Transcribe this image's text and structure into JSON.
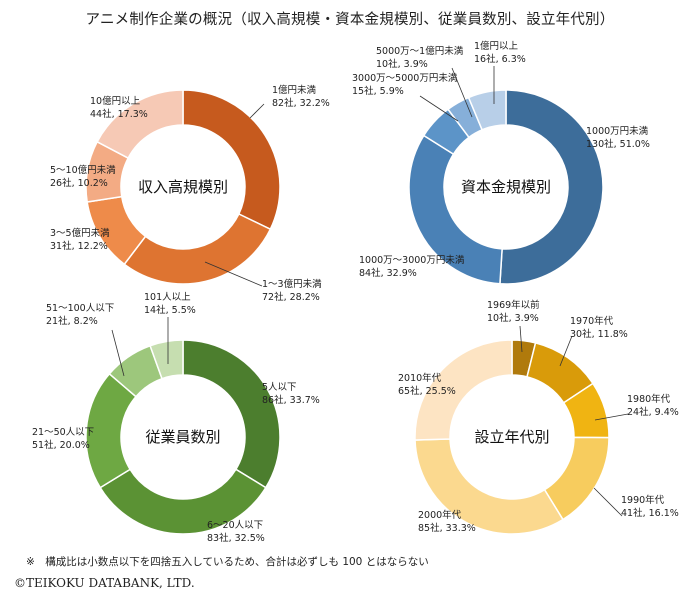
{
  "title": "アニメ制作企業の概況（収入高規模・資本金規模別、従業員数別、設立年代別）",
  "note": "※　構成比は小数点以下を四捨五入しているため、合計は必ずしも 100 とはならない",
  "copyright": "©TEIKOKU DATABANK, LTD.",
  "chart_data": [
    {
      "type": "pie",
      "donut": true,
      "title": "収入高規模別",
      "colors": [
        "#c65a1e",
        "#de7431",
        "#ee8b4a",
        "#f3ab84",
        "#f6c9b5"
      ],
      "slices": [
        {
          "name": "1億円未満",
          "count": "82社",
          "pct": "32.2%",
          "value": 32.2
        },
        {
          "name": "1～3億円未満",
          "count": "72社",
          "pct": "28.2%",
          "value": 28.2
        },
        {
          "name": "3～5億円未満",
          "count": "31社",
          "pct": "12.2%",
          "value": 12.2
        },
        {
          "name": "5～10億円未満",
          "count": "26社",
          "pct": "10.2%",
          "value": 10.2
        },
        {
          "name": "10億円以上",
          "count": "44社",
          "pct": "17.3%",
          "value": 17.3
        }
      ]
    },
    {
      "type": "pie",
      "donut": true,
      "title": "資本金規模別",
      "colors": [
        "#3d6d9a",
        "#4a81b6",
        "#5c94c8",
        "#86afd9",
        "#b8cfe8"
      ],
      "slices": [
        {
          "name": "1000万円未満",
          "count": "130社",
          "pct": "51.0%",
          "value": 51.0
        },
        {
          "name": "1000万～3000万円未満",
          "count": "84社",
          "pct": "32.9%",
          "value": 32.9
        },
        {
          "name": "3000万～5000万円未満",
          "count": "15社",
          "pct": "5.9%",
          "value": 5.9
        },
        {
          "name": "5000万～1億円未満",
          "count": "10社",
          "pct": "3.9%",
          "value": 3.9
        },
        {
          "name": "1億円以上",
          "count": "16社",
          "pct": "6.3%",
          "value": 6.3
        }
      ]
    },
    {
      "type": "pie",
      "donut": true,
      "title": "従業員数別",
      "colors": [
        "#4c7e2e",
        "#5b9234",
        "#6ea843",
        "#9dc77c",
        "#c6deb0"
      ],
      "slices": [
        {
          "name": "5人以下",
          "count": "86社",
          "pct": "33.7%",
          "value": 33.7
        },
        {
          "name": "6～20人以下",
          "count": "83社",
          "pct": "32.5%",
          "value": 32.5
        },
        {
          "name": "21～50人以下",
          "count": "51社",
          "pct": "20.0%",
          "value": 20.0
        },
        {
          "name": "51～100人以下",
          "count": "21社",
          "pct": "8.2%",
          "value": 8.2
        },
        {
          "name": "101人以上",
          "count": "14社",
          "pct": "5.5%",
          "value": 5.5
        }
      ]
    },
    {
      "type": "pie",
      "donut": true,
      "title": "設立年代別",
      "colors": [
        "#b07a0c",
        "#d99b0a",
        "#f0b412",
        "#f7cc5e",
        "#fbd98f",
        "#fde4c3"
      ],
      "slices": [
        {
          "name": "1969年以前",
          "count": "10社",
          "pct": "3.9%",
          "value": 3.9
        },
        {
          "name": "1970年代",
          "count": "30社",
          "pct": "11.8%",
          "value": 11.8
        },
        {
          "name": "1980年代",
          "count": "24社",
          "pct": "9.4%",
          "value": 9.4
        },
        {
          "name": "1990年代",
          "count": "41社",
          "pct": "16.1%",
          "value": 16.1
        },
        {
          "name": "2000年代",
          "count": "85社",
          "pct": "33.3%",
          "value": 33.3
        },
        {
          "name": "2010年代",
          "count": "65社",
          "pct": "25.5%",
          "value": 25.5
        }
      ]
    }
  ]
}
